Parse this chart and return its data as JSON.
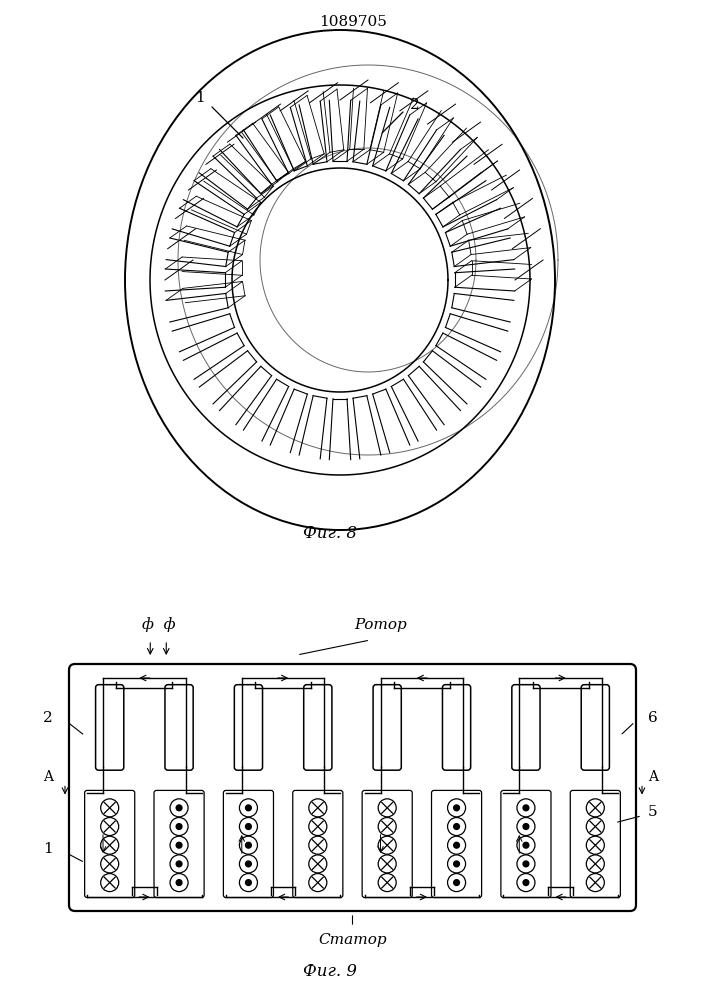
{
  "title": "1089705",
  "fig8_label": "Фиг. 8",
  "fig9_label": "Фиг. 9",
  "label1_fig8": "1",
  "label2_fig8": "2",
  "label1_fig9": "1",
  "label2_fig9": "2",
  "label5_fig9": "5",
  "label6_fig9": "6",
  "labelA": "A",
  "labelPhi": "ф  ф",
  "labelRotor": "Ротор",
  "labelStator": "Статор",
  "bg_color": "#ffffff",
  "line_color": "#000000",
  "n_poles": 4,
  "n_stator_cols_per_pole": 3,
  "n_rotor_slots_per_pole": 2,
  "n_conductor_rows": 5
}
